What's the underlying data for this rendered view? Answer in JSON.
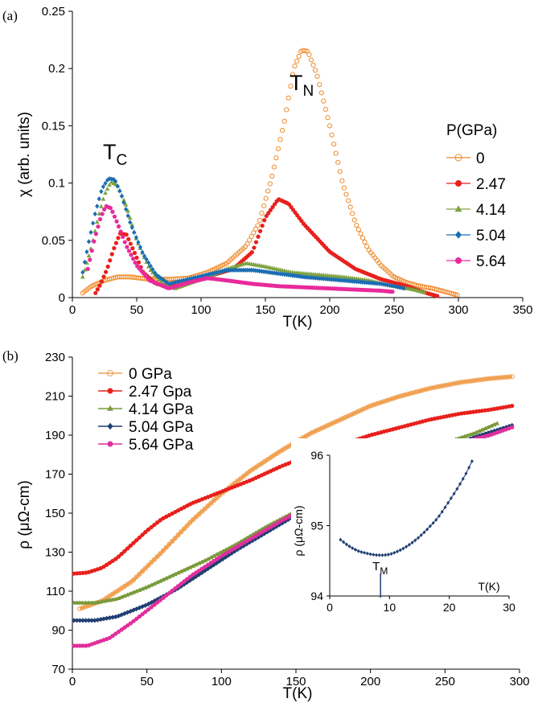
{
  "panels": {
    "a": {
      "label": "(a)"
    },
    "b": {
      "label": "(b)"
    }
  },
  "chart_data": [
    {
      "type": "scatter",
      "panel": "(a)",
      "xlabel": "T(K)",
      "ylabel": "χ (arb. units)",
      "xlim": [
        0,
        350
      ],
      "ylim": [
        0,
        0.25
      ],
      "xticks": [
        "0",
        "50",
        "100",
        "150",
        "200",
        "250",
        "300",
        "350"
      ],
      "yticks": [
        "0",
        "0.05",
        "0.1",
        "0.15",
        "0.2",
        "0.25"
      ],
      "legend_title": "P(GPa)",
      "legend_position": "right",
      "annotations": [
        {
          "text": "T",
          "sub": "C",
          "at": "x≈35 K, y≈0.12"
        },
        {
          "text": "T",
          "sub": "N",
          "at": "x≈170 K, y≈0.17"
        }
      ],
      "series": [
        {
          "name": "0",
          "color": "#F08A2A",
          "marker": "open-circle",
          "points": [
            [
              8,
              0.004
            ],
            [
              15,
              0.01
            ],
            [
              25,
              0.015
            ],
            [
              35,
              0.018
            ],
            [
              45,
              0.018
            ],
            [
              60,
              0.016
            ],
            [
              75,
              0.016
            ],
            [
              90,
              0.017
            ],
            [
              105,
              0.022
            ],
            [
              120,
              0.03
            ],
            [
              135,
              0.045
            ],
            [
              145,
              0.065
            ],
            [
              155,
              0.105
            ],
            [
              165,
              0.155
            ],
            [
              172,
              0.2
            ],
            [
              178,
              0.216
            ],
            [
              183,
              0.215
            ],
            [
              190,
              0.195
            ],
            [
              200,
              0.15
            ],
            [
              210,
              0.1
            ],
            [
              220,
              0.065
            ],
            [
              230,
              0.042
            ],
            [
              240,
              0.028
            ],
            [
              250,
              0.018
            ],
            [
              260,
              0.013
            ],
            [
              270,
              0.01
            ],
            [
              280,
              0.008
            ],
            [
              290,
              0.005
            ],
            [
              300,
              0.002
            ]
          ]
        },
        {
          "name": "2.47",
          "color": "#E8201C",
          "marker": "filled-circle",
          "points": [
            [
              18,
              0.004
            ],
            [
              22,
              0.012
            ],
            [
              27,
              0.025
            ],
            [
              32,
              0.042
            ],
            [
              37,
              0.056
            ],
            [
              42,
              0.055
            ],
            [
              48,
              0.04
            ],
            [
              55,
              0.022
            ],
            [
              65,
              0.012
            ],
            [
              80,
              0.01
            ],
            [
              95,
              0.015
            ],
            [
              110,
              0.02
            ],
            [
              125,
              0.025
            ],
            [
              140,
              0.04
            ],
            [
              150,
              0.07
            ],
            [
              160,
              0.086
            ],
            [
              168,
              0.082
            ],
            [
              180,
              0.064
            ],
            [
              200,
              0.04
            ],
            [
              220,
              0.025
            ],
            [
              240,
              0.016
            ],
            [
              260,
              0.01
            ],
            [
              275,
              0.004
            ],
            [
              285,
              0.001
            ]
          ]
        },
        {
          "name": "4.14",
          "color": "#7FA340",
          "marker": "triangle",
          "points": [
            [
              8,
              0.018
            ],
            [
              15,
              0.045
            ],
            [
              20,
              0.07
            ],
            [
              25,
              0.09
            ],
            [
              30,
              0.101
            ],
            [
              35,
              0.098
            ],
            [
              42,
              0.08
            ],
            [
              50,
              0.05
            ],
            [
              60,
              0.025
            ],
            [
              70,
              0.012
            ],
            [
              80,
              0.008
            ],
            [
              90,
              0.012
            ],
            [
              105,
              0.018
            ],
            [
              120,
              0.025
            ],
            [
              135,
              0.03
            ],
            [
              150,
              0.027
            ],
            [
              170,
              0.022
            ],
            [
              190,
              0.02
            ],
            [
              210,
              0.018
            ],
            [
              230,
              0.015
            ],
            [
              250,
              0.01
            ],
            [
              265,
              0.007
            ],
            [
              275,
              0.004
            ]
          ]
        },
        {
          "name": "5.04",
          "color": "#1B6DB3",
          "marker": "diamond",
          "points": [
            [
              8,
              0.022
            ],
            [
              13,
              0.05
            ],
            [
              18,
              0.075
            ],
            [
              23,
              0.095
            ],
            [
              28,
              0.104
            ],
            [
              33,
              0.103
            ],
            [
              38,
              0.09
            ],
            [
              45,
              0.065
            ],
            [
              55,
              0.038
            ],
            [
              65,
              0.02
            ],
            [
              75,
              0.012
            ],
            [
              90,
              0.016
            ],
            [
              105,
              0.02
            ],
            [
              120,
              0.024
            ],
            [
              140,
              0.024
            ],
            [
              160,
              0.021
            ],
            [
              180,
              0.018
            ],
            [
              200,
              0.016
            ],
            [
              220,
              0.014
            ],
            [
              240,
              0.012
            ],
            [
              250,
              0.01
            ],
            [
              258,
              0.008
            ]
          ]
        },
        {
          "name": "5.64",
          "color": "#E82A9A",
          "marker": "filled-circle",
          "points": [
            [
              12,
              0.025
            ],
            [
              17,
              0.05
            ],
            [
              22,
              0.07
            ],
            [
              26,
              0.08
            ],
            [
              30,
              0.078
            ],
            [
              35,
              0.065
            ],
            [
              42,
              0.045
            ],
            [
              50,
              0.028
            ],
            [
              60,
              0.015
            ],
            [
              75,
              0.008
            ],
            [
              90,
              0.013
            ],
            [
              105,
              0.017
            ],
            [
              120,
              0.015
            ],
            [
              140,
              0.012
            ],
            [
              160,
              0.01
            ],
            [
              180,
              0.009
            ],
            [
              200,
              0.008
            ],
            [
              220,
              0.007
            ],
            [
              240,
              0.006
            ],
            [
              250,
              0.005
            ]
          ]
        }
      ]
    },
    {
      "type": "line",
      "panel": "(b)",
      "xlabel": "T(K)",
      "ylabel": "ρ (μΩ-cm)",
      "xlim": [
        0,
        300
      ],
      "ylim": [
        70,
        230
      ],
      "xticks": [
        "0",
        "50",
        "100",
        "150",
        "200",
        "250",
        "300"
      ],
      "yticks": [
        "70",
        "90",
        "110",
        "130",
        "150",
        "170",
        "190",
        "210",
        "230"
      ],
      "legend_position": "top-left",
      "series": [
        {
          "name": "0 GPa",
          "color": "#F0A050",
          "marker": "open-circle",
          "points": [
            [
              5,
              101
            ],
            [
              20,
              105
            ],
            [
              40,
              115
            ],
            [
              60,
              130
            ],
            [
              80,
              146
            ],
            [
              100,
              160
            ],
            [
              120,
              172
            ],
            [
              140,
              182
            ],
            [
              160,
              191
            ],
            [
              180,
              198
            ],
            [
              200,
              205
            ],
            [
              220,
              210
            ],
            [
              240,
              214
            ],
            [
              260,
              217
            ],
            [
              280,
              219
            ],
            [
              295,
              220
            ]
          ]
        },
        {
          "name": "2.47 Gpa",
          "color": "#E8201C",
          "marker": "filled-circle",
          "points": [
            [
              1,
              119
            ],
            [
              10,
              119.5
            ],
            [
              20,
              122
            ],
            [
              30,
              127
            ],
            [
              40,
              134
            ],
            [
              50,
              141
            ],
            [
              60,
              147
            ],
            [
              80,
              155
            ],
            [
              100,
              161
            ],
            [
              120,
              167
            ],
            [
              140,
              174
            ],
            [
              160,
              180
            ],
            [
              180,
              185
            ],
            [
              200,
              190
            ],
            [
              220,
              194
            ],
            [
              240,
              198
            ],
            [
              260,
              201
            ],
            [
              280,
              203
            ],
            [
              295,
              205
            ]
          ]
        },
        {
          "name": "4.14 GPa",
          "color": "#7A9A3A",
          "marker": "triangle",
          "points": [
            [
              1,
              104
            ],
            [
              15,
              104
            ],
            [
              30,
              106
            ],
            [
              50,
              112
            ],
            [
              70,
              119
            ],
            [
              90,
              126
            ],
            [
              110,
              134
            ],
            [
              130,
              143
            ],
            [
              150,
              151
            ],
            [
              170,
              160
            ],
            [
              190,
              167
            ],
            [
              210,
              174
            ],
            [
              230,
              180
            ],
            [
              250,
              186
            ],
            [
              270,
              191
            ],
            [
              285,
              196
            ]
          ]
        },
        {
          "name": "5.04 GPa",
          "color": "#1F3F73",
          "marker": "diamond",
          "points": [
            [
              1,
              95
            ],
            [
              15,
              95
            ],
            [
              30,
              97
            ],
            [
              50,
              103
            ],
            [
              70,
              111
            ],
            [
              90,
              121
            ],
            [
              110,
              131
            ],
            [
              130,
              140
            ],
            [
              150,
              149
            ],
            [
              170,
              157
            ],
            [
              190,
              164
            ],
            [
              210,
              171
            ],
            [
              230,
              177
            ],
            [
              250,
              183
            ],
            [
              270,
              189
            ],
            [
              295,
              195
            ]
          ]
        },
        {
          "name": "5.64 GPa",
          "color": "#E02F9C",
          "marker": "filled-circle",
          "points": [
            [
              1,
              82
            ],
            [
              10,
              82
            ],
            [
              25,
              86
            ],
            [
              40,
              94
            ],
            [
              60,
              106
            ],
            [
              80,
              118
            ],
            [
              100,
              128
            ],
            [
              120,
              137
            ],
            [
              140,
              146
            ],
            [
              160,
              154
            ],
            [
              180,
              162
            ],
            [
              200,
              169
            ],
            [
              220,
              175
            ],
            [
              240,
              181
            ],
            [
              260,
              186
            ],
            [
              280,
              190
            ],
            [
              295,
              194
            ]
          ]
        }
      ]
    },
    {
      "type": "line",
      "panel": "(b) inset",
      "xlabel": "T(K)",
      "ylabel": "ρ (μΩ-cm)",
      "xlim": [
        0,
        30
      ],
      "ylim": [
        94,
        96
      ],
      "xticks": [
        "0",
        "10",
        "20",
        "30"
      ],
      "yticks": [
        "94",
        "95",
        "96"
      ],
      "annotation": {
        "text": "T",
        "sub": "M",
        "x": 8.5
      },
      "series": [
        {
          "name": "",
          "color": "#1F3F73",
          "marker": "diamond",
          "points": [
            [
              1.8,
              94.8
            ],
            [
              3,
              94.72
            ],
            [
              4,
              94.67
            ],
            [
              5,
              94.63
            ],
            [
              6,
              94.61
            ],
            [
              7,
              94.59
            ],
            [
              8,
              94.58
            ],
            [
              9,
              94.58
            ],
            [
              10,
              94.59
            ],
            [
              11,
              94.62
            ],
            [
              12,
              94.66
            ],
            [
              13,
              94.71
            ],
            [
              14,
              94.77
            ],
            [
              15,
              94.84
            ],
            [
              16,
              94.92
            ],
            [
              17,
              95.01
            ],
            [
              18,
              95.1
            ],
            [
              19,
              95.22
            ],
            [
              20,
              95.35
            ],
            [
              21,
              95.48
            ],
            [
              22,
              95.62
            ],
            [
              23,
              95.77
            ],
            [
              24,
              95.95
            ]
          ]
        }
      ]
    }
  ]
}
